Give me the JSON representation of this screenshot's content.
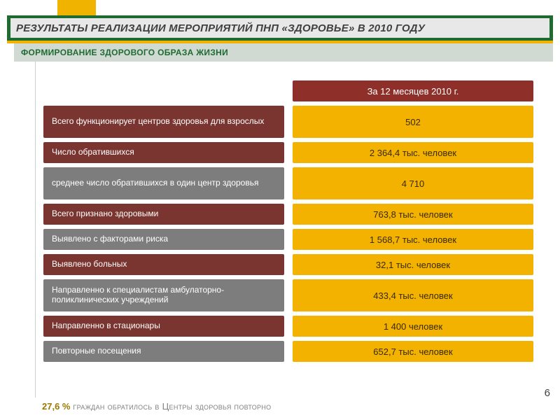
{
  "title": "РЕЗУЛЬТАТЫ РЕАЛИЗАЦИИ МЕРОПРИЯТИЙ ПНП «ЗДОРОВЬЕ» В 2010 ГОДУ",
  "subtitle": "ФОРМИРОВАНИЕ ЗДОРОВОГО ОБРАЗА ЖИЗНИ",
  "header_value": "За 12 месяцев 2010 г.",
  "colors": {
    "label_maroon": "#7a3530",
    "label_gray": "#7d7d7d",
    "value_bg": "#f3b200",
    "header_bg": "#8e2f2a",
    "title_green": "#1e6b32",
    "accent_yellow": "#f0b400"
  },
  "rows": [
    {
      "label": "Всего функционирует центров здоровья для взрослых",
      "value": "502",
      "label_bg": "#7a3530",
      "h": "h2"
    },
    {
      "label": "Число обратившихся",
      "value": "2 364,4 тыс. человек",
      "label_bg": "#7a3530",
      "h": "h1"
    },
    {
      "label": "среднее число обратившихся в один центр здоровья",
      "value": "4 710",
      "label_bg": "#7d7d7d",
      "h": "h2"
    },
    {
      "label": "Всего признано здоровыми",
      "value": "763,8 тыс. человек",
      "label_bg": "#7a3530",
      "h": "h1"
    },
    {
      "label": "Выявлено с факторами риска",
      "value": "1 568,7 тыс. человек",
      "label_bg": "#7d7d7d",
      "h": "h1"
    },
    {
      "label": "Выявлено больных",
      "value": "32,1 тыс. человек",
      "label_bg": "#7a3530",
      "h": "h1"
    },
    {
      "label": "Направленно к специалистам амбулаторно-поликлинических учреждений",
      "value": "433,4 тыс. человек",
      "label_bg": "#7d7d7d",
      "h": "h2"
    },
    {
      "label": "Направленно в стационары",
      "value": "1 400 человек",
      "label_bg": "#7a3530",
      "h": "h1"
    },
    {
      "label": "Повторные посещения",
      "value": "652,7 тыс. человек",
      "label_bg": "#7d7d7d",
      "h": "h1"
    }
  ],
  "footer_pct": "27,6 %",
  "footer_rest": " граждан обратилось в Центры здоровья повторно",
  "page_number": "6"
}
